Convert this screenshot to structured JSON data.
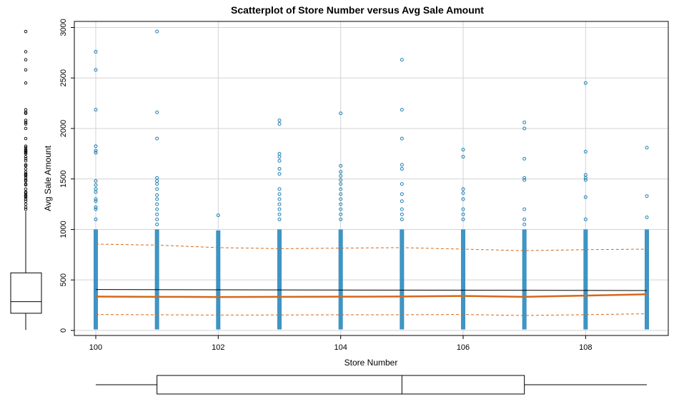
{
  "chart_data": {
    "type": "scatter",
    "title": "Scatterplot of Store Number versus Avg Sale Amount",
    "xlabel": "Store Number",
    "ylabel": "Avg Sale Amount",
    "xlim": [
      99.65,
      109.35
    ],
    "ylim": [
      -50,
      3060
    ],
    "x_ticks": [
      100,
      102,
      104,
      106,
      108
    ],
    "y_ticks": [
      0,
      500,
      1000,
      1500,
      2000,
      2500,
      3000
    ],
    "grid": true,
    "colors": {
      "points": "#1f7fb4",
      "smoother": "#d2691e",
      "linear_fit": "#000000",
      "grid": "#d3d3d3"
    },
    "points": [
      {
        "x": 100,
        "y": [
          2760,
          2580,
          2185,
          1825,
          1780,
          1760,
          1480,
          1440,
          1400,
          1370,
          1300,
          1280,
          1220,
          1200,
          1100
        ]
      },
      {
        "x": 101,
        "y": [
          2960,
          2160,
          1900,
          1510,
          1480,
          1450,
          1400,
          1340,
          1300,
          1250,
          1200,
          1150,
          1100,
          1050
        ]
      },
      {
        "x": 102,
        "y": [
          1140
        ]
      },
      {
        "x": 103,
        "y": [
          2080,
          2045,
          1750,
          1720,
          1680,
          1600,
          1550,
          1400,
          1350,
          1300,
          1250,
          1200,
          1150,
          1100
        ]
      },
      {
        "x": 104,
        "y": [
          2150,
          1630,
          1570,
          1530,
          1490,
          1450,
          1400,
          1350,
          1300,
          1250,
          1200,
          1150,
          1100
        ]
      },
      {
        "x": 105,
        "y": [
          2680,
          2185,
          1900,
          1640,
          1600,
          1450,
          1350,
          1280,
          1200,
          1150,
          1100
        ]
      },
      {
        "x": 106,
        "y": [
          1790,
          1720,
          1400,
          1360,
          1300,
          1200,
          1150,
          1100
        ]
      },
      {
        "x": 107,
        "y": [
          2060,
          2000,
          1700,
          1510,
          1490,
          1200,
          1100,
          1050
        ]
      },
      {
        "x": 108,
        "y": [
          2450,
          1770,
          1540,
          1510,
          1490,
          1320,
          1100
        ]
      },
      {
        "x": 109,
        "y": [
          1810,
          1330,
          1120
        ]
      }
    ],
    "dense_band": {
      "y_min": 10,
      "y_max": 1000
    },
    "smoother": {
      "x": [
        100,
        101,
        102,
        103,
        104,
        105,
        106,
        107,
        108,
        109
      ],
      "y": [
        335,
        333,
        331,
        333,
        334,
        336,
        341,
        333,
        345,
        358
      ]
    },
    "smoother_upper": {
      "x": [
        100,
        101,
        102,
        103,
        104,
        105,
        106,
        107,
        108,
        109
      ],
      "y": [
        855,
        845,
        820,
        810,
        815,
        820,
        805,
        790,
        800,
        805
      ]
    },
    "smoother_lower": {
      "x": [
        100,
        101,
        102,
        103,
        104,
        105,
        106,
        107,
        108,
        109
      ],
      "y": [
        158,
        155,
        152,
        153,
        155,
        155,
        158,
        148,
        156,
        165
      ]
    },
    "linear_fit": {
      "x": [
        100,
        109
      ],
      "y": [
        405,
        395
      ]
    },
    "boxplot_y": {
      "q1": 170,
      "median": 285,
      "q3": 570,
      "whisker_low": 5,
      "whisker_high": 1180,
      "outliers": [
        2960,
        2760,
        2680,
        2580,
        2450,
        2185,
        2160,
        2150,
        2080,
        2060,
        2045,
        2000,
        1900,
        1825,
        1810,
        1790,
        1780,
        1770,
        1760,
        1750,
        1720,
        1700,
        1680,
        1640,
        1630,
        1600,
        1570,
        1550,
        1540,
        1530,
        1510,
        1490,
        1480,
        1450,
        1440,
        1400,
        1370,
        1360,
        1340,
        1330,
        1320,
        1300,
        1280,
        1250,
        1220,
        1200
      ]
    },
    "boxplot_x": {
      "whisker_low": 100,
      "q1": 101,
      "median": 105,
      "q3": 107,
      "whisker_high": 109
    }
  }
}
